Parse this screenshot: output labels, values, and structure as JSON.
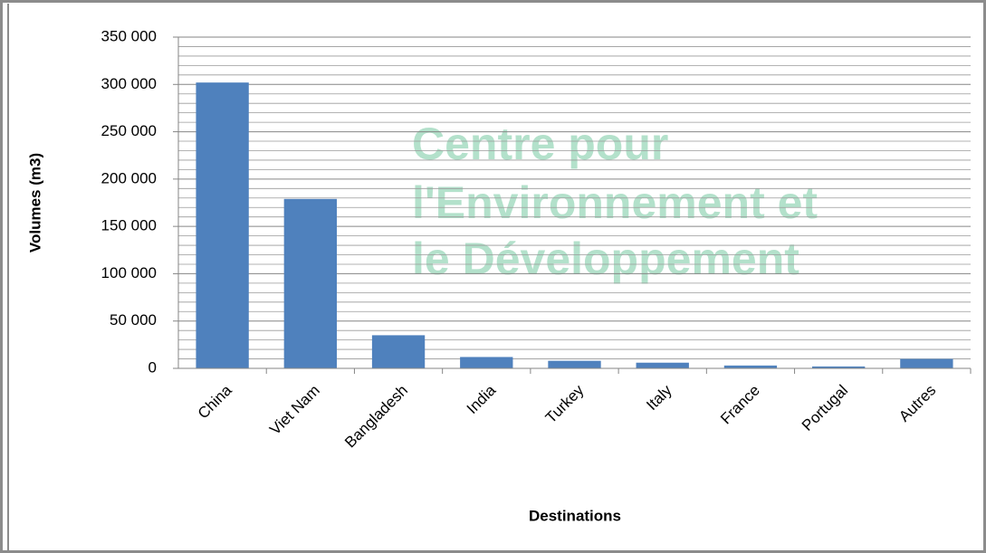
{
  "chart_data": {
    "type": "bar",
    "watermark": [
      "Centre pour",
      "l'Environnement et",
      "le Développement"
    ],
    "x_label": "Destinations",
    "y_label": "Volumes (m3)",
    "categories": [
      "China",
      "Viet Nam",
      "Bangladesh",
      "India",
      "Turkey",
      "Italy",
      "France",
      "Portugal",
      "Autres"
    ],
    "values": [
      302000,
      179000,
      35000,
      12000,
      8000,
      6000,
      3000,
      2000,
      10000
    ],
    "color": "#4f81bd",
    "ylim": [
      0,
      350000
    ],
    "yticks": [
      0,
      {
        "value": 50000,
        "label": "50 000"
      },
      {
        "value": 100000,
        "label": "100 000"
      },
      {
        "value": 150000,
        "label": "150 000"
      },
      {
        "value": 200000,
        "label": "200 000"
      },
      {
        "value": 250000,
        "label": "250 000"
      },
      {
        "value": 300000,
        "label": "300 000"
      },
      {
        "value": 350000,
        "label": "350 000"
      }
    ],
    "minor_yticks": [
      10000,
      20000,
      30000,
      40000,
      60000,
      70000,
      80000,
      90000,
      110000,
      120000,
      130000,
      140000,
      160000,
      170000,
      180000,
      190000,
      210000,
      220000,
      230000,
      240000,
      260000,
      270000,
      280000,
      290000,
      310000,
      320000,
      330000,
      340000
    ],
    "grid": true
  }
}
